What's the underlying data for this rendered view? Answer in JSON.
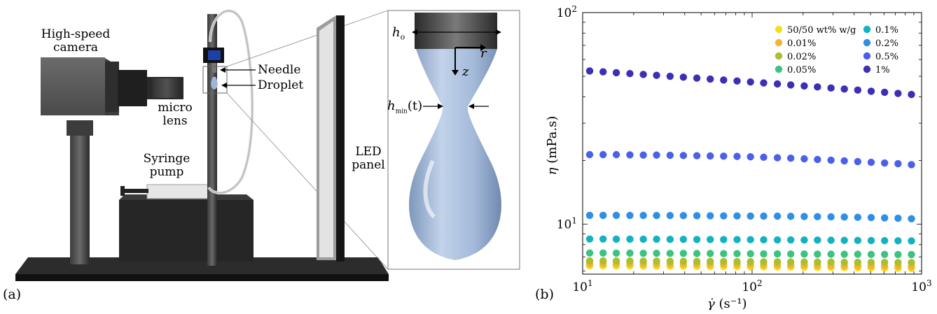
{
  "panel_a": {
    "tag": "(a)",
    "labels": {
      "camera_line1": "High-speed",
      "camera_line2": "camera",
      "lens_line1": "micro",
      "lens_line2": "lens",
      "pump_line1": "Syringe",
      "pump_line2": "pump",
      "needle": "Needle",
      "droplet": "Droplet",
      "led_line1": "LED",
      "led_line2": "panel"
    },
    "inset": {
      "h0_main": "h",
      "h0_sub": "o",
      "r": "r",
      "z": "z",
      "hmin_main": "h",
      "hmin_sub": "min",
      "hmin_arg": "(t)"
    },
    "colors": {
      "droplet": "#9fb7d6",
      "dark_metal": "#2b2b2b",
      "base": "#1e1e1e",
      "needle_holder": "#1f3fa8"
    }
  },
  "panel_b": {
    "tag": "(b)"
  },
  "chart_data": {
    "type": "scatter",
    "xscale": "log",
    "yscale": "log",
    "xlim": [
      10,
      1000
    ],
    "ylim": [
      5.8,
      100
    ],
    "xticks": [
      10,
      100,
      1000
    ],
    "yticks": [
      10,
      100
    ],
    "xtick_labels": [
      {
        "base": "10",
        "exp": "1"
      },
      {
        "base": "10",
        "exp": "2"
      },
      {
        "base": "10",
        "exp": "3"
      }
    ],
    "ytick_labels": [
      {
        "base": "10",
        "exp": "1"
      },
      {
        "base": "10",
        "exp": "2"
      }
    ],
    "xlabel": {
      "symbol": "γ̇",
      "units": "(s⁻¹)"
    },
    "ylabel": {
      "symbol": "η",
      "units": "(mPa.s)"
    },
    "legend_position": "top-right",
    "legend_columns": 2,
    "x": [
      11,
      13.2,
      15.8,
      19,
      22.8,
      27.3,
      32.8,
      39.3,
      47.2,
      56.6,
      67.9,
      81.5,
      97.8,
      117,
      141,
      169,
      203,
      243,
      292,
      350,
      420,
      504,
      605,
      726,
      871
    ],
    "series": [
      {
        "name": "50/50 wt% w/g",
        "color": "#f0e11a",
        "values": [
          6.35,
          6.35,
          6.34,
          6.34,
          6.33,
          6.33,
          6.32,
          6.32,
          6.31,
          6.3,
          6.3,
          6.29,
          6.28,
          6.28,
          6.27,
          6.26,
          6.25,
          6.24,
          6.23,
          6.22,
          6.21,
          6.2,
          6.19,
          6.18,
          6.17
        ]
      },
      {
        "name": "0.01%",
        "color": "#f5b335",
        "values": [
          6.5,
          6.5,
          6.49,
          6.49,
          6.48,
          6.48,
          6.47,
          6.47,
          6.46,
          6.45,
          6.45,
          6.44,
          6.43,
          6.42,
          6.41,
          6.4,
          6.39,
          6.38,
          6.37,
          6.36,
          6.35,
          6.34,
          6.33,
          6.32,
          6.31
        ]
      },
      {
        "name": "0.02%",
        "color": "#a9bf2f",
        "values": [
          6.7,
          6.7,
          6.69,
          6.69,
          6.68,
          6.68,
          6.67,
          6.67,
          6.66,
          6.66,
          6.65,
          6.65,
          6.64,
          6.63,
          6.63,
          6.62,
          6.62,
          6.61,
          6.61,
          6.6,
          6.6,
          6.59,
          6.59,
          6.58,
          6.58
        ]
      },
      {
        "name": "0.05%",
        "color": "#3cc381",
        "values": [
          7.3,
          7.3,
          7.29,
          7.29,
          7.28,
          7.28,
          7.27,
          7.27,
          7.26,
          7.26,
          7.25,
          7.25,
          7.24,
          7.23,
          7.23,
          7.22,
          7.22,
          7.21,
          7.21,
          7.2,
          7.2,
          7.19,
          7.19,
          7.18,
          7.18
        ]
      },
      {
        "name": "0.1%",
        "color": "#12b2c2",
        "values": [
          8.5,
          8.5,
          8.49,
          8.49,
          8.48,
          8.48,
          8.47,
          8.47,
          8.46,
          8.46,
          8.45,
          8.45,
          8.44,
          8.43,
          8.42,
          8.42,
          8.41,
          8.4,
          8.39,
          8.38,
          8.37,
          8.36,
          8.35,
          8.34,
          8.33
        ]
      },
      {
        "name": "0.2%",
        "color": "#2e8fe6",
        "values": [
          11,
          11,
          11,
          10.99,
          10.99,
          10.98,
          10.98,
          10.97,
          10.96,
          10.95,
          10.94,
          10.93,
          10.92,
          10.91,
          10.9,
          10.88,
          10.86,
          10.84,
          10.82,
          10.8,
          10.77,
          10.74,
          10.7,
          10.66,
          10.6
        ]
      },
      {
        "name": "0.5%",
        "color": "#4a60ea",
        "values": [
          21.3,
          21.3,
          21.3,
          21.25,
          21.2,
          21.2,
          21.15,
          21.1,
          21.05,
          21,
          20.95,
          20.9,
          20.8,
          20.7,
          20.6,
          20.5,
          20.35,
          20.2,
          20.05,
          19.9,
          19.75,
          19.6,
          19.45,
          19.3,
          19.1
        ]
      },
      {
        "name": "1%",
        "color": "#3b2fb5",
        "values": [
          53,
          52.5,
          52,
          51.5,
          51,
          50.5,
          50,
          49.5,
          49,
          48.5,
          48,
          47.5,
          47,
          46.5,
          46,
          45.5,
          45,
          44.5,
          44,
          43.5,
          43,
          42.5,
          42,
          41.5,
          41
        ]
      }
    ]
  }
}
